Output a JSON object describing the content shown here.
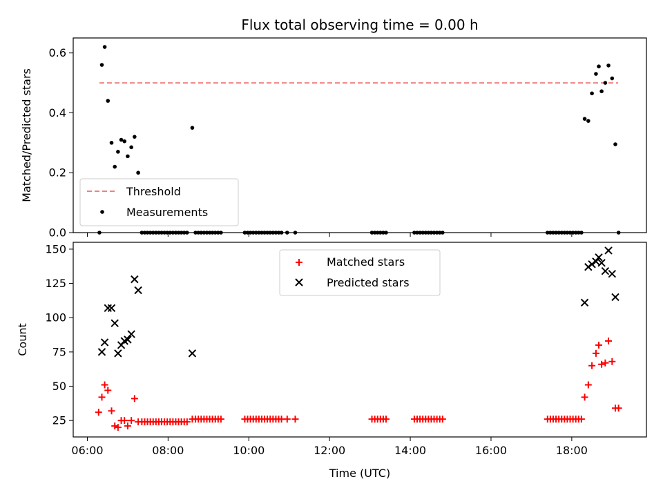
{
  "figure": {
    "title": "Flux total observing time = 0.00 h",
    "colors": {
      "threshold": "#f08080",
      "measurement": "#000000",
      "matched": "#ff0000",
      "predicted": "#000000"
    }
  },
  "chart_data": [
    {
      "type": "scatter",
      "ylabel": "Matched/Predicted stars",
      "xlabel": "",
      "xlim_hours": [
        5.65,
        19.85
      ],
      "ylim": [
        0,
        0.65
      ],
      "yticks": [
        0.0,
        0.2,
        0.4,
        0.6
      ],
      "ytick_labels": [
        "0.0",
        "0.2",
        "0.4",
        "0.6"
      ],
      "xticks_hours": [
        6,
        8,
        10,
        12,
        14,
        16,
        18
      ],
      "legend": {
        "placement": "lower-left",
        "entries": [
          "Threshold",
          "Measurements"
        ]
      },
      "threshold": {
        "name": "Threshold",
        "value": 0.5,
        "x_range_hours": [
          6.3,
          19.15
        ]
      },
      "series": [
        {
          "name": "Measurements",
          "marker": "dot",
          "points": [
            [
              6.3,
              0.0
            ],
            [
              6.36,
              0.56
            ],
            [
              6.43,
              0.62
            ],
            [
              6.51,
              0.44
            ],
            [
              6.6,
              0.3
            ],
            [
              6.68,
              0.22
            ],
            [
              6.76,
              0.27
            ],
            [
              6.84,
              0.31
            ],
            [
              6.92,
              0.305
            ],
            [
              7.0,
              0.255
            ],
            [
              7.09,
              0.285
            ],
            [
              7.17,
              0.32
            ],
            [
              7.26,
              0.2
            ],
            [
              8.6,
              0.35
            ],
            [
              18.32,
              0.38
            ],
            [
              18.41,
              0.373
            ],
            [
              18.5,
              0.465
            ],
            [
              18.6,
              0.53
            ],
            [
              18.67,
              0.555
            ],
            [
              18.74,
              0.472
            ],
            [
              18.83,
              0.5
            ],
            [
              18.91,
              0.558
            ],
            [
              19.0,
              0.515
            ],
            [
              19.08,
              0.295
            ],
            [
              19.16,
              0.0
            ],
            [
              7.35,
              0.0
            ],
            [
              7.42,
              0.0
            ],
            [
              7.49,
              0.0
            ],
            [
              7.56,
              0.0
            ],
            [
              7.63,
              0.0
            ],
            [
              7.7,
              0.0
            ],
            [
              7.77,
              0.0
            ],
            [
              7.84,
              0.0
            ],
            [
              7.91,
              0.0
            ],
            [
              7.98,
              0.0
            ],
            [
              8.05,
              0.0
            ],
            [
              8.12,
              0.0
            ],
            [
              8.19,
              0.0
            ],
            [
              8.26,
              0.0
            ],
            [
              8.33,
              0.0
            ],
            [
              8.4,
              0.0
            ],
            [
              8.47,
              0.0
            ],
            [
              8.68,
              0.0
            ],
            [
              8.75,
              0.0
            ],
            [
              8.82,
              0.0
            ],
            [
              8.89,
              0.0
            ],
            [
              8.96,
              0.0
            ],
            [
              9.03,
              0.0
            ],
            [
              9.1,
              0.0
            ],
            [
              9.17,
              0.0
            ],
            [
              9.24,
              0.0
            ],
            [
              9.31,
              0.0
            ],
            [
              9.9,
              0.0
            ],
            [
              9.97,
              0.0
            ],
            [
              10.04,
              0.0
            ],
            [
              10.11,
              0.0
            ],
            [
              10.18,
              0.0
            ],
            [
              10.25,
              0.0
            ],
            [
              10.32,
              0.0
            ],
            [
              10.39,
              0.0
            ],
            [
              10.46,
              0.0
            ],
            [
              10.53,
              0.0
            ],
            [
              10.6,
              0.0
            ],
            [
              10.67,
              0.0
            ],
            [
              10.74,
              0.0
            ],
            [
              10.81,
              0.0
            ],
            [
              10.95,
              0.0
            ],
            [
              11.15,
              0.0
            ],
            [
              13.05,
              0.0
            ],
            [
              13.12,
              0.0
            ],
            [
              13.19,
              0.0
            ],
            [
              13.26,
              0.0
            ],
            [
              13.33,
              0.0
            ],
            [
              13.4,
              0.0
            ],
            [
              14.1,
              0.0
            ],
            [
              14.17,
              0.0
            ],
            [
              14.24,
              0.0
            ],
            [
              14.31,
              0.0
            ],
            [
              14.38,
              0.0
            ],
            [
              14.45,
              0.0
            ],
            [
              14.52,
              0.0
            ],
            [
              14.59,
              0.0
            ],
            [
              14.66,
              0.0
            ],
            [
              14.73,
              0.0
            ],
            [
              14.8,
              0.0
            ],
            [
              17.4,
              0.0
            ],
            [
              17.47,
              0.0
            ],
            [
              17.54,
              0.0
            ],
            [
              17.61,
              0.0
            ],
            [
              17.68,
              0.0
            ],
            [
              17.75,
              0.0
            ],
            [
              17.82,
              0.0
            ],
            [
              17.89,
              0.0
            ],
            [
              17.96,
              0.0
            ],
            [
              18.03,
              0.0
            ],
            [
              18.1,
              0.0
            ],
            [
              18.17,
              0.0
            ],
            [
              18.24,
              0.0
            ]
          ]
        }
      ]
    },
    {
      "type": "scatter",
      "ylabel": "Count",
      "xlabel": "Time (UTC)",
      "xlim_hours": [
        5.65,
        19.85
      ],
      "ylim": [
        13,
        155
      ],
      "yticks": [
        25,
        50,
        75,
        100,
        125,
        150
      ],
      "ytick_labels": [
        "25",
        "50",
        "75",
        "100",
        "125",
        "150"
      ],
      "xticks_hours": [
        6,
        8,
        10,
        12,
        14,
        16,
        18
      ],
      "xtick_labels": [
        "06:00",
        "08:00",
        "10:00",
        "12:00",
        "14:00",
        "16:00",
        "18:00"
      ],
      "legend": {
        "placement": "upper-center",
        "entries": [
          "Matched stars",
          "Predicted stars"
        ]
      },
      "series": [
        {
          "name": "Matched stars",
          "marker": "plus",
          "points": [
            [
              6.28,
              31
            ],
            [
              6.36,
              42
            ],
            [
              6.43,
              51
            ],
            [
              6.51,
              47
            ],
            [
              6.6,
              32
            ],
            [
              6.68,
              21
            ],
            [
              6.76,
              20
            ],
            [
              6.84,
              25
            ],
            [
              6.92,
              25
            ],
            [
              7.0,
              21
            ],
            [
              7.09,
              25
            ],
            [
              7.17,
              41
            ],
            [
              7.26,
              24
            ],
            [
              7.35,
              24
            ],
            [
              7.42,
              24
            ],
            [
              7.49,
              24
            ],
            [
              7.56,
              24
            ],
            [
              7.63,
              24
            ],
            [
              7.7,
              24
            ],
            [
              7.77,
              24
            ],
            [
              7.84,
              24
            ],
            [
              7.91,
              24
            ],
            [
              7.98,
              24
            ],
            [
              8.05,
              24
            ],
            [
              8.12,
              24
            ],
            [
              8.19,
              24
            ],
            [
              8.26,
              24
            ],
            [
              8.33,
              24
            ],
            [
              8.4,
              24
            ],
            [
              8.47,
              24
            ],
            [
              8.6,
              26
            ],
            [
              8.68,
              26
            ],
            [
              8.75,
              26
            ],
            [
              8.82,
              26
            ],
            [
              8.89,
              26
            ],
            [
              8.96,
              26
            ],
            [
              9.03,
              26
            ],
            [
              9.1,
              26
            ],
            [
              9.17,
              26
            ],
            [
              9.24,
              26
            ],
            [
              9.31,
              26
            ],
            [
              9.9,
              26
            ],
            [
              9.97,
              26
            ],
            [
              10.04,
              26
            ],
            [
              10.11,
              26
            ],
            [
              10.18,
              26
            ],
            [
              10.25,
              26
            ],
            [
              10.32,
              26
            ],
            [
              10.39,
              26
            ],
            [
              10.46,
              26
            ],
            [
              10.53,
              26
            ],
            [
              10.6,
              26
            ],
            [
              10.67,
              26
            ],
            [
              10.74,
              26
            ],
            [
              10.81,
              26
            ],
            [
              10.95,
              26
            ],
            [
              11.15,
              26
            ],
            [
              13.05,
              26
            ],
            [
              13.12,
              26
            ],
            [
              13.19,
              26
            ],
            [
              13.26,
              26
            ],
            [
              13.33,
              26
            ],
            [
              13.4,
              26
            ],
            [
              14.1,
              26
            ],
            [
              14.17,
              26
            ],
            [
              14.24,
              26
            ],
            [
              14.31,
              26
            ],
            [
              14.38,
              26
            ],
            [
              14.45,
              26
            ],
            [
              14.52,
              26
            ],
            [
              14.59,
              26
            ],
            [
              14.66,
              26
            ],
            [
              14.73,
              26
            ],
            [
              14.8,
              26
            ],
            [
              17.4,
              26
            ],
            [
              17.47,
              26
            ],
            [
              17.54,
              26
            ],
            [
              17.61,
              26
            ],
            [
              17.68,
              26
            ],
            [
              17.75,
              26
            ],
            [
              17.82,
              26
            ],
            [
              17.89,
              26
            ],
            [
              17.96,
              26
            ],
            [
              18.03,
              26
            ],
            [
              18.1,
              26
            ],
            [
              18.17,
              26
            ],
            [
              18.24,
              26
            ],
            [
              18.32,
              42
            ],
            [
              18.41,
              51
            ],
            [
              18.5,
              65
            ],
            [
              18.6,
              74
            ],
            [
              18.67,
              80
            ],
            [
              18.74,
              66
            ],
            [
              18.83,
              67
            ],
            [
              18.91,
              83
            ],
            [
              19.0,
              68
            ],
            [
              19.08,
              34
            ],
            [
              19.16,
              34
            ]
          ]
        },
        {
          "name": "Predicted stars",
          "marker": "x",
          "points": [
            [
              6.36,
              75
            ],
            [
              6.43,
              82
            ],
            [
              6.51,
              107
            ],
            [
              6.6,
              107
            ],
            [
              6.68,
              96
            ],
            [
              6.76,
              74
            ],
            [
              6.84,
              80
            ],
            [
              6.92,
              83
            ],
            [
              7.0,
              84
            ],
            [
              7.09,
              88
            ],
            [
              7.17,
              128
            ],
            [
              7.26,
              120
            ],
            [
              8.6,
              74
            ],
            [
              18.32,
              111
            ],
            [
              18.41,
              137
            ],
            [
              18.5,
              139
            ],
            [
              18.6,
              141
            ],
            [
              18.67,
              144
            ],
            [
              18.74,
              140
            ],
            [
              18.83,
              134
            ],
            [
              18.91,
              149
            ],
            [
              19.0,
              132
            ],
            [
              19.08,
              115
            ]
          ]
        }
      ]
    }
  ]
}
